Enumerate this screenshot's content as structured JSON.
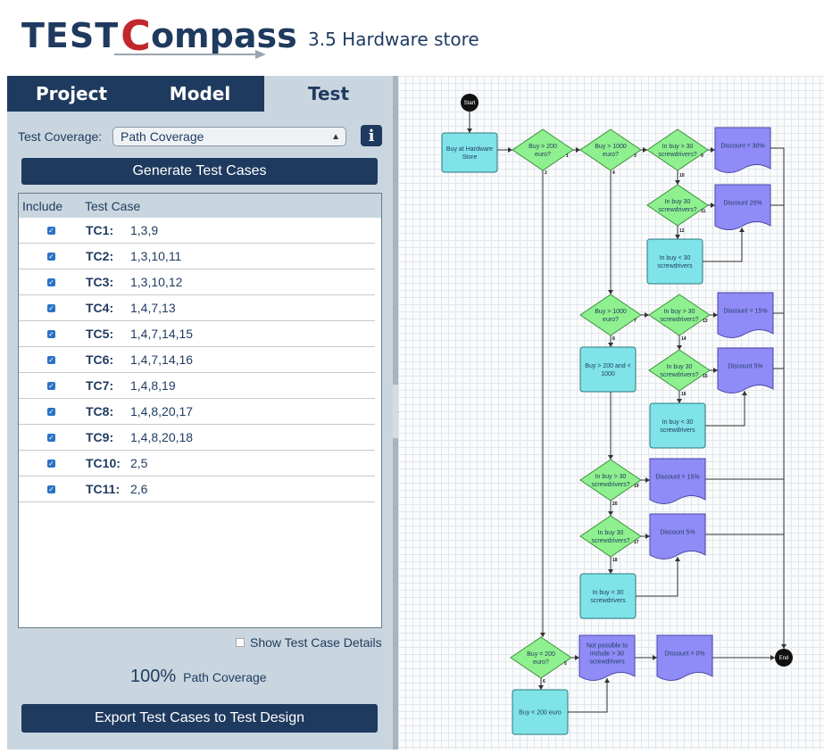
{
  "header": {
    "logo_test": "TEST",
    "logo_c": "C",
    "logo_ompass": "ompass",
    "project_title": "3.5 Hardware store"
  },
  "tabs": [
    {
      "label": "Project",
      "active": false
    },
    {
      "label": "Model",
      "active": false
    },
    {
      "label": "Test",
      "active": true
    }
  ],
  "coverage": {
    "label": "Test Coverage:",
    "selected": "Path Coverage",
    "info": "i"
  },
  "buttons": {
    "generate": "Generate Test Cases",
    "export": "Export Test Cases to Test Design"
  },
  "table": {
    "headers": [
      "Include",
      "Test Case"
    ],
    "rows": [
      {
        "name": "TC1:",
        "path": "1,3,9"
      },
      {
        "name": "TC2:",
        "path": "1,3,10,11"
      },
      {
        "name": "TC3:",
        "path": "1,3,10,12"
      },
      {
        "name": "TC4:",
        "path": "1,4,7,13"
      },
      {
        "name": "TC5:",
        "path": "1,4,7,14,15"
      },
      {
        "name": "TC6:",
        "path": "1,4,7,14,16"
      },
      {
        "name": "TC7:",
        "path": "1,4,8,19"
      },
      {
        "name": "TC8:",
        "path": "1,4,8,20,17"
      },
      {
        "name": "TC9:",
        "path": "1,4,8,20,18"
      },
      {
        "name": "TC10:",
        "path": "2,5"
      },
      {
        "name": "TC11:",
        "path": "2,6"
      }
    ]
  },
  "details_label": "Show Test Case Details",
  "coverage_result": {
    "value": "100%",
    "label": "Path Coverage"
  },
  "colors": {
    "navy": "#1f3a5f",
    "panel": "#c9d6df",
    "decision": "#8ef08e",
    "process": "#7fe3e8",
    "document": "#8f8cf7",
    "checkbox": "#2a72c4",
    "logo_red": "#c0282d"
  },
  "flow": {
    "start": "Start",
    "end": "End",
    "buy_hw": "Buy at Hardware Store",
    "d_200": "Buy > 200 euro?",
    "d_1000_a": "Buy > 1000 euro?",
    "d_30_a": "In buy > 30 screwdrivers?",
    "disc_30": "Discount = 30%",
    "d_30eq_a": "In buy 30 screwdrivers?",
    "disc_20": "Discount 20%",
    "lt30_a": "In buy < 30 screwdrivers",
    "d_1000_b": "Buy > 1000 euro?",
    "d_30_b": "In buy > 30 screwdrivers?",
    "disc_15_a": "Discount = 15%",
    "between": "Buy > 200 and < 1000",
    "d_30eq_b": "In buy 30 screwdrivers?",
    "disc_5_a": "Discount 5%",
    "lt30_b": "In buy < 30 screwdrivers",
    "d_30_c": "In buy > 30 screwdrivers?",
    "disc_15_b": "Discount = 15%",
    "d_30eq_c": "In buy 30 screwdrivers?",
    "disc_5_b": "Discount 5%",
    "lt30_c": "In buy < 30 screwdrivers",
    "d_200_b": "Buy = 200 euro?",
    "not_possible": "Not possible to include > 30 screwdrivers",
    "disc_0": "Discount = 0%",
    "lt200": "Buy < 200 euro",
    "edges": [
      "1",
      "2",
      "3",
      "4",
      "9",
      "10",
      "11",
      "12",
      "7",
      "8",
      "13",
      "14",
      "15",
      "16",
      "19",
      "20",
      "17",
      "18",
      "5",
      "6"
    ]
  }
}
